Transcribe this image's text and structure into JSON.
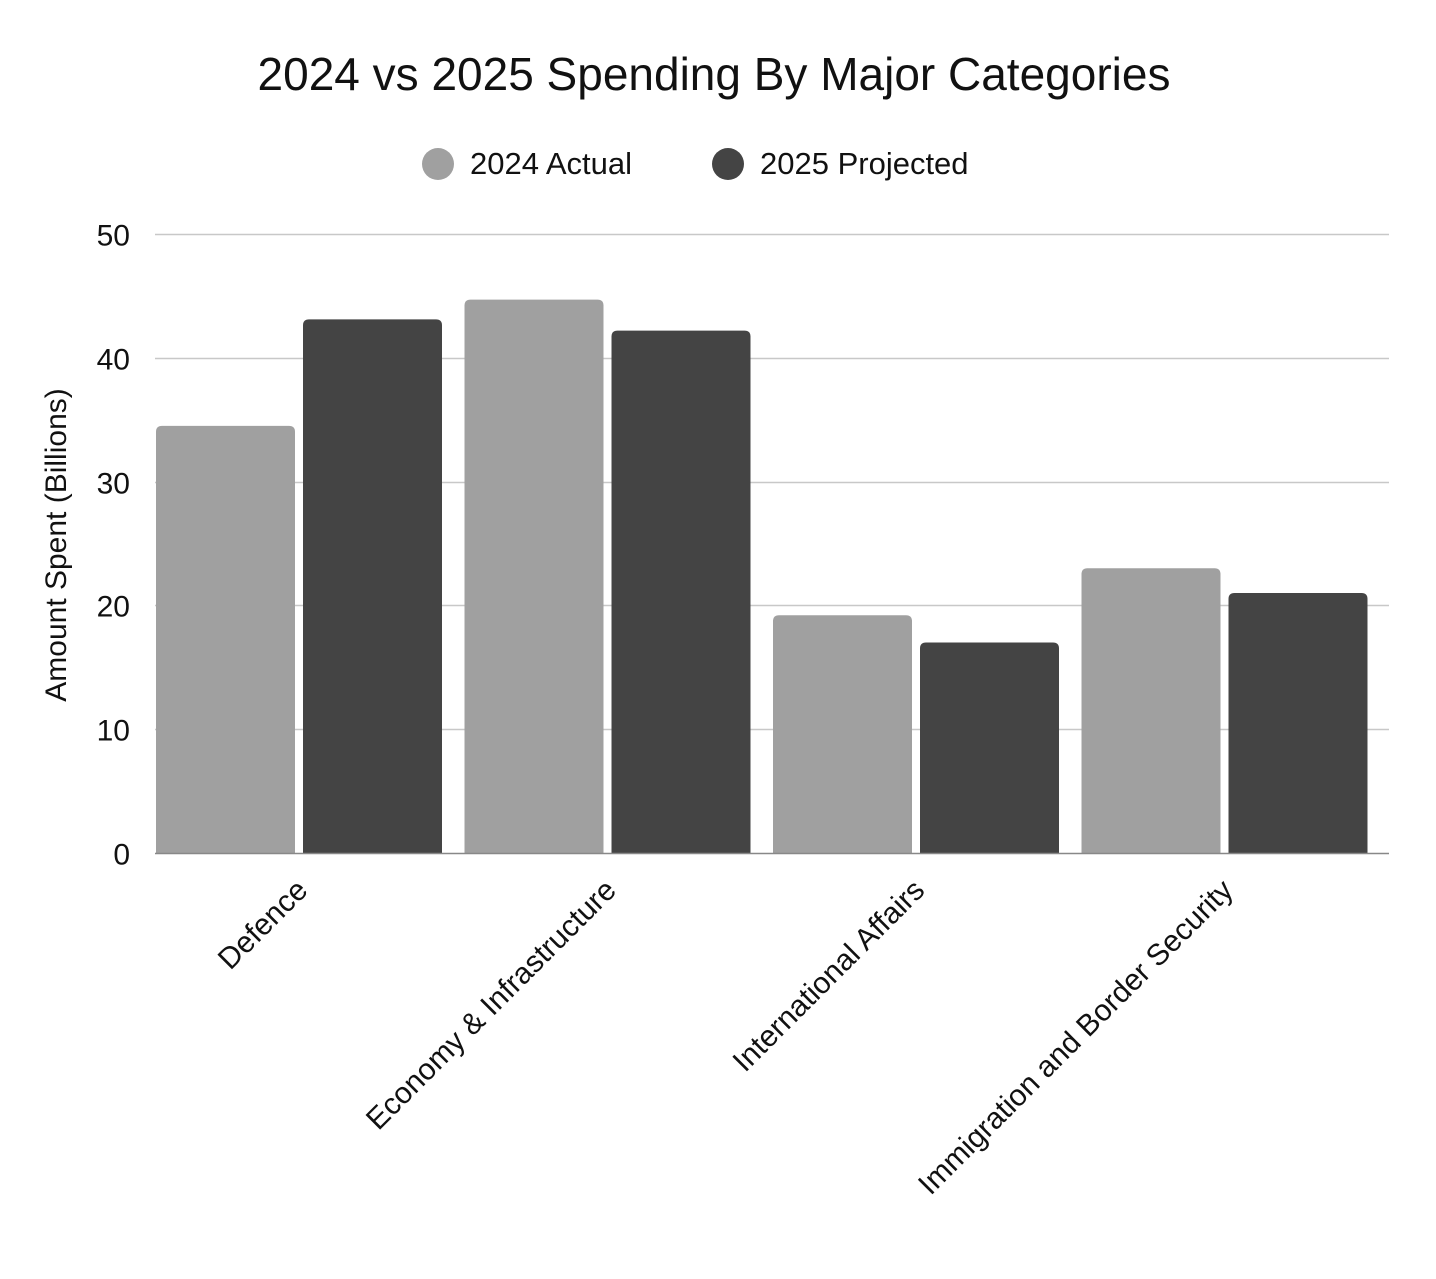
{
  "chart_data": {
    "type": "bar",
    "title": "2024 vs 2025 Spending By Major Categories",
    "xlabel": "",
    "ylabel": "Amount Spent (Billions)",
    "categories": [
      "Defence",
      "Economy & Infrastructure",
      "International Affairs",
      "Immigration and Border Security"
    ],
    "series": [
      {
        "name": "2024 Actual",
        "color": "#a0a0a0",
        "values": [
          34.5,
          44.7,
          19.2,
          23.0
        ]
      },
      {
        "name": "2025 Projected",
        "color": "#444444",
        "values": [
          43.1,
          42.2,
          17.0,
          21.0
        ]
      }
    ],
    "ylim": [
      0,
      50
    ],
    "yticks": [
      "0",
      "10",
      "20",
      "30",
      "40",
      "50"
    ],
    "grid": true,
    "legend_position": "top-center",
    "gridline_color": "#c8c8c8"
  }
}
